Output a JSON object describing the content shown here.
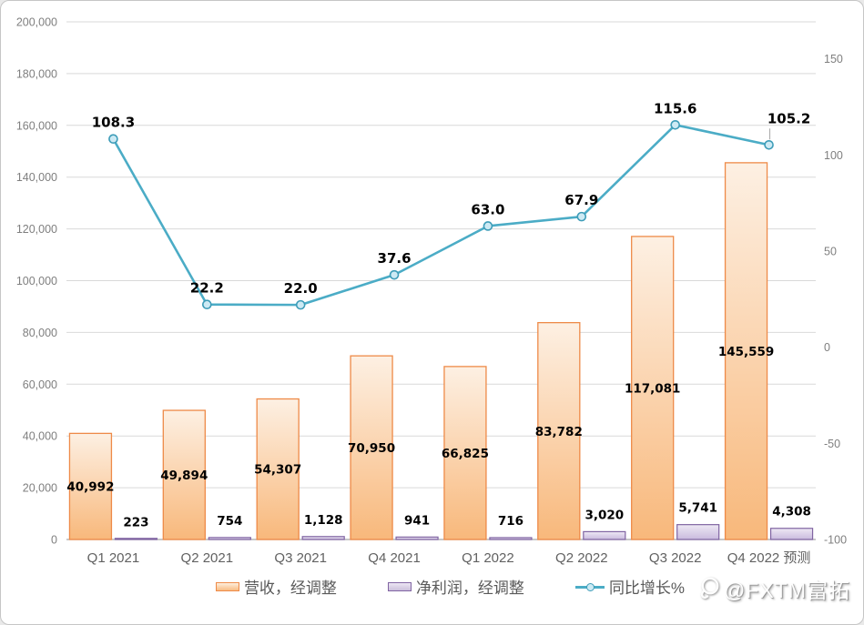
{
  "chart_data": {
    "type": "combo",
    "categories": [
      "Q1 2021",
      "Q2 2021",
      "Q3 2021",
      "Q4 2021",
      "Q1 2022",
      "Q2 2022",
      "Q3 2022",
      "Q4 2022 预测"
    ],
    "series": [
      {
        "name": "营收，经调整",
        "type": "bar",
        "axis": "left",
        "values": [
          40992,
          49894,
          54307,
          70950,
          66825,
          83782,
          117081,
          145559
        ],
        "labels": [
          "40,992",
          "49,894",
          "54,307",
          "70,950",
          "66,825",
          "83,782",
          "117,081",
          "145,559"
        ],
        "border_color": "#ee8a48",
        "gradient": [
          "#fdf0e3",
          "#f8b87b"
        ]
      },
      {
        "name": "净利润，经调整",
        "type": "bar",
        "axis": "left",
        "values": [
          223,
          754,
          1128,
          941,
          716,
          3020,
          5741,
          4308
        ],
        "labels": [
          "223",
          "754",
          "1,128",
          "941",
          "716",
          "3,020",
          "5,741",
          "4,308"
        ],
        "border_color": "#8064a2",
        "gradient": [
          "#eee9f4",
          "#c9bade"
        ]
      },
      {
        "name": "同比增长%",
        "type": "line",
        "axis": "right",
        "values": [
          108.3,
          22.2,
          22.0,
          37.6,
          63.0,
          67.9,
          115.6,
          105.2
        ],
        "labels": [
          "108.3",
          "22.2",
          "22.0",
          "37.6",
          "63.0",
          "67.9",
          "115.6",
          "105.2"
        ],
        "line_color": "#4bacc6",
        "marker_fill": "#cdeaf4",
        "marker_stroke": "#3d9cb8"
      }
    ],
    "left_axis": {
      "min": 0,
      "max": 200000,
      "step": 20000,
      "tick_labels": [
        "0",
        "20,000",
        "40,000",
        "60,000",
        "80,000",
        "100,000",
        "120,000",
        "140,000",
        "160,000",
        "180,000",
        "200,000"
      ]
    },
    "right_axis": {
      "tick_values": [
        150,
        100,
        50,
        0,
        -50,
        -100
      ],
      "tick_labels": [
        "150",
        "100",
        "50",
        "0",
        "-50",
        "-100"
      ]
    },
    "grid": true,
    "legend_position": "bottom"
  },
  "colors": {
    "gridline": "#d9d9d9",
    "axis_line": "#a8a8a8",
    "tick_text": "#7f7f7f",
    "x_label_text": "#616161",
    "legend_text": "#595959",
    "leader_line": "#a6a6a6"
  },
  "watermark": {
    "text": "@FXTM富拓"
  }
}
